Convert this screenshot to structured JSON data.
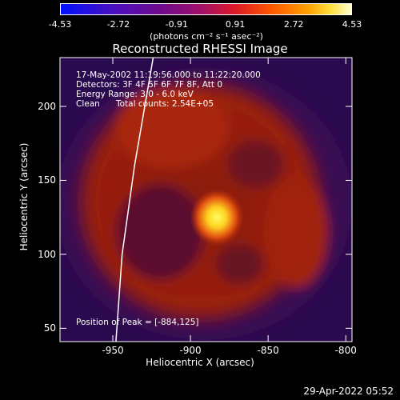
{
  "colorbar": {
    "ticks": [
      "-4.53",
      "-2.72",
      "-0.91",
      "0.91",
      "2.72",
      "4.53"
    ],
    "units": "(photons cm⁻² s⁻¹ asec⁻²)",
    "range": [
      -4.53,
      4.53
    ]
  },
  "chart_data": {
    "type": "heatmap",
    "title": "Reconstructed RHESSI Image",
    "xlabel": "Heliocentric X (arcsec)",
    "ylabel": "Heliocentric Y (arcsec)",
    "xlim": [
      -984,
      -796
    ],
    "ylim": [
      41,
      233
    ],
    "xticks": [
      "-950",
      "-900",
      "-850",
      "-800"
    ],
    "yticks": [
      "50",
      "100",
      "150",
      "200"
    ],
    "peak": {
      "x": -884,
      "y": 125,
      "value": 4.53
    },
    "annotations": {
      "time": "17-May-2002 11:19:56.000 to 11:22:20.000",
      "detectors": "Detectors: 3F 4F 5F 6F 7F 8F, Att 0",
      "energy": "Energy Range: 3.0 - 6.0 keV",
      "method": "Clean",
      "counts": "Total counts: 2.54E+05",
      "peak_label": "Position of Peak = [-884,125]"
    },
    "limb_curve": [
      [
        -948,
        41
      ],
      [
        -944,
        100
      ],
      [
        -936,
        160
      ],
      [
        -924,
        233
      ]
    ]
  },
  "footer": {
    "timestamp": "29-Apr-2022 05:52"
  }
}
